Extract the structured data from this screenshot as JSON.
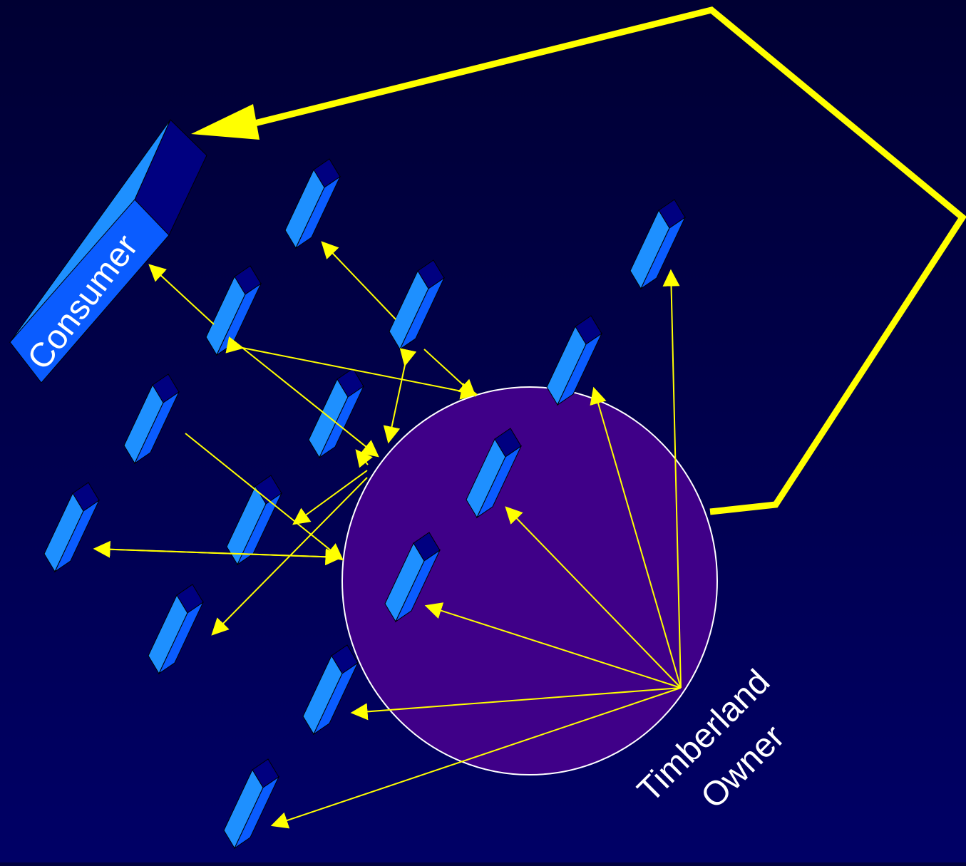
{
  "labels": {
    "consumer": "Consumer",
    "timberland_line1": "Timberland",
    "timberland_line2": "Owner"
  },
  "colors": {
    "background_top": "#000033",
    "background_bottom": "#000066",
    "circle_fill": "#3F0088",
    "circle_stroke": "#FFFFFF",
    "arrow": "#FFFF00",
    "box_front": "#0A5CFF",
    "box_side": "#1E90FF",
    "box_top": "#000080",
    "label_text": "#FFFFFF"
  }
}
